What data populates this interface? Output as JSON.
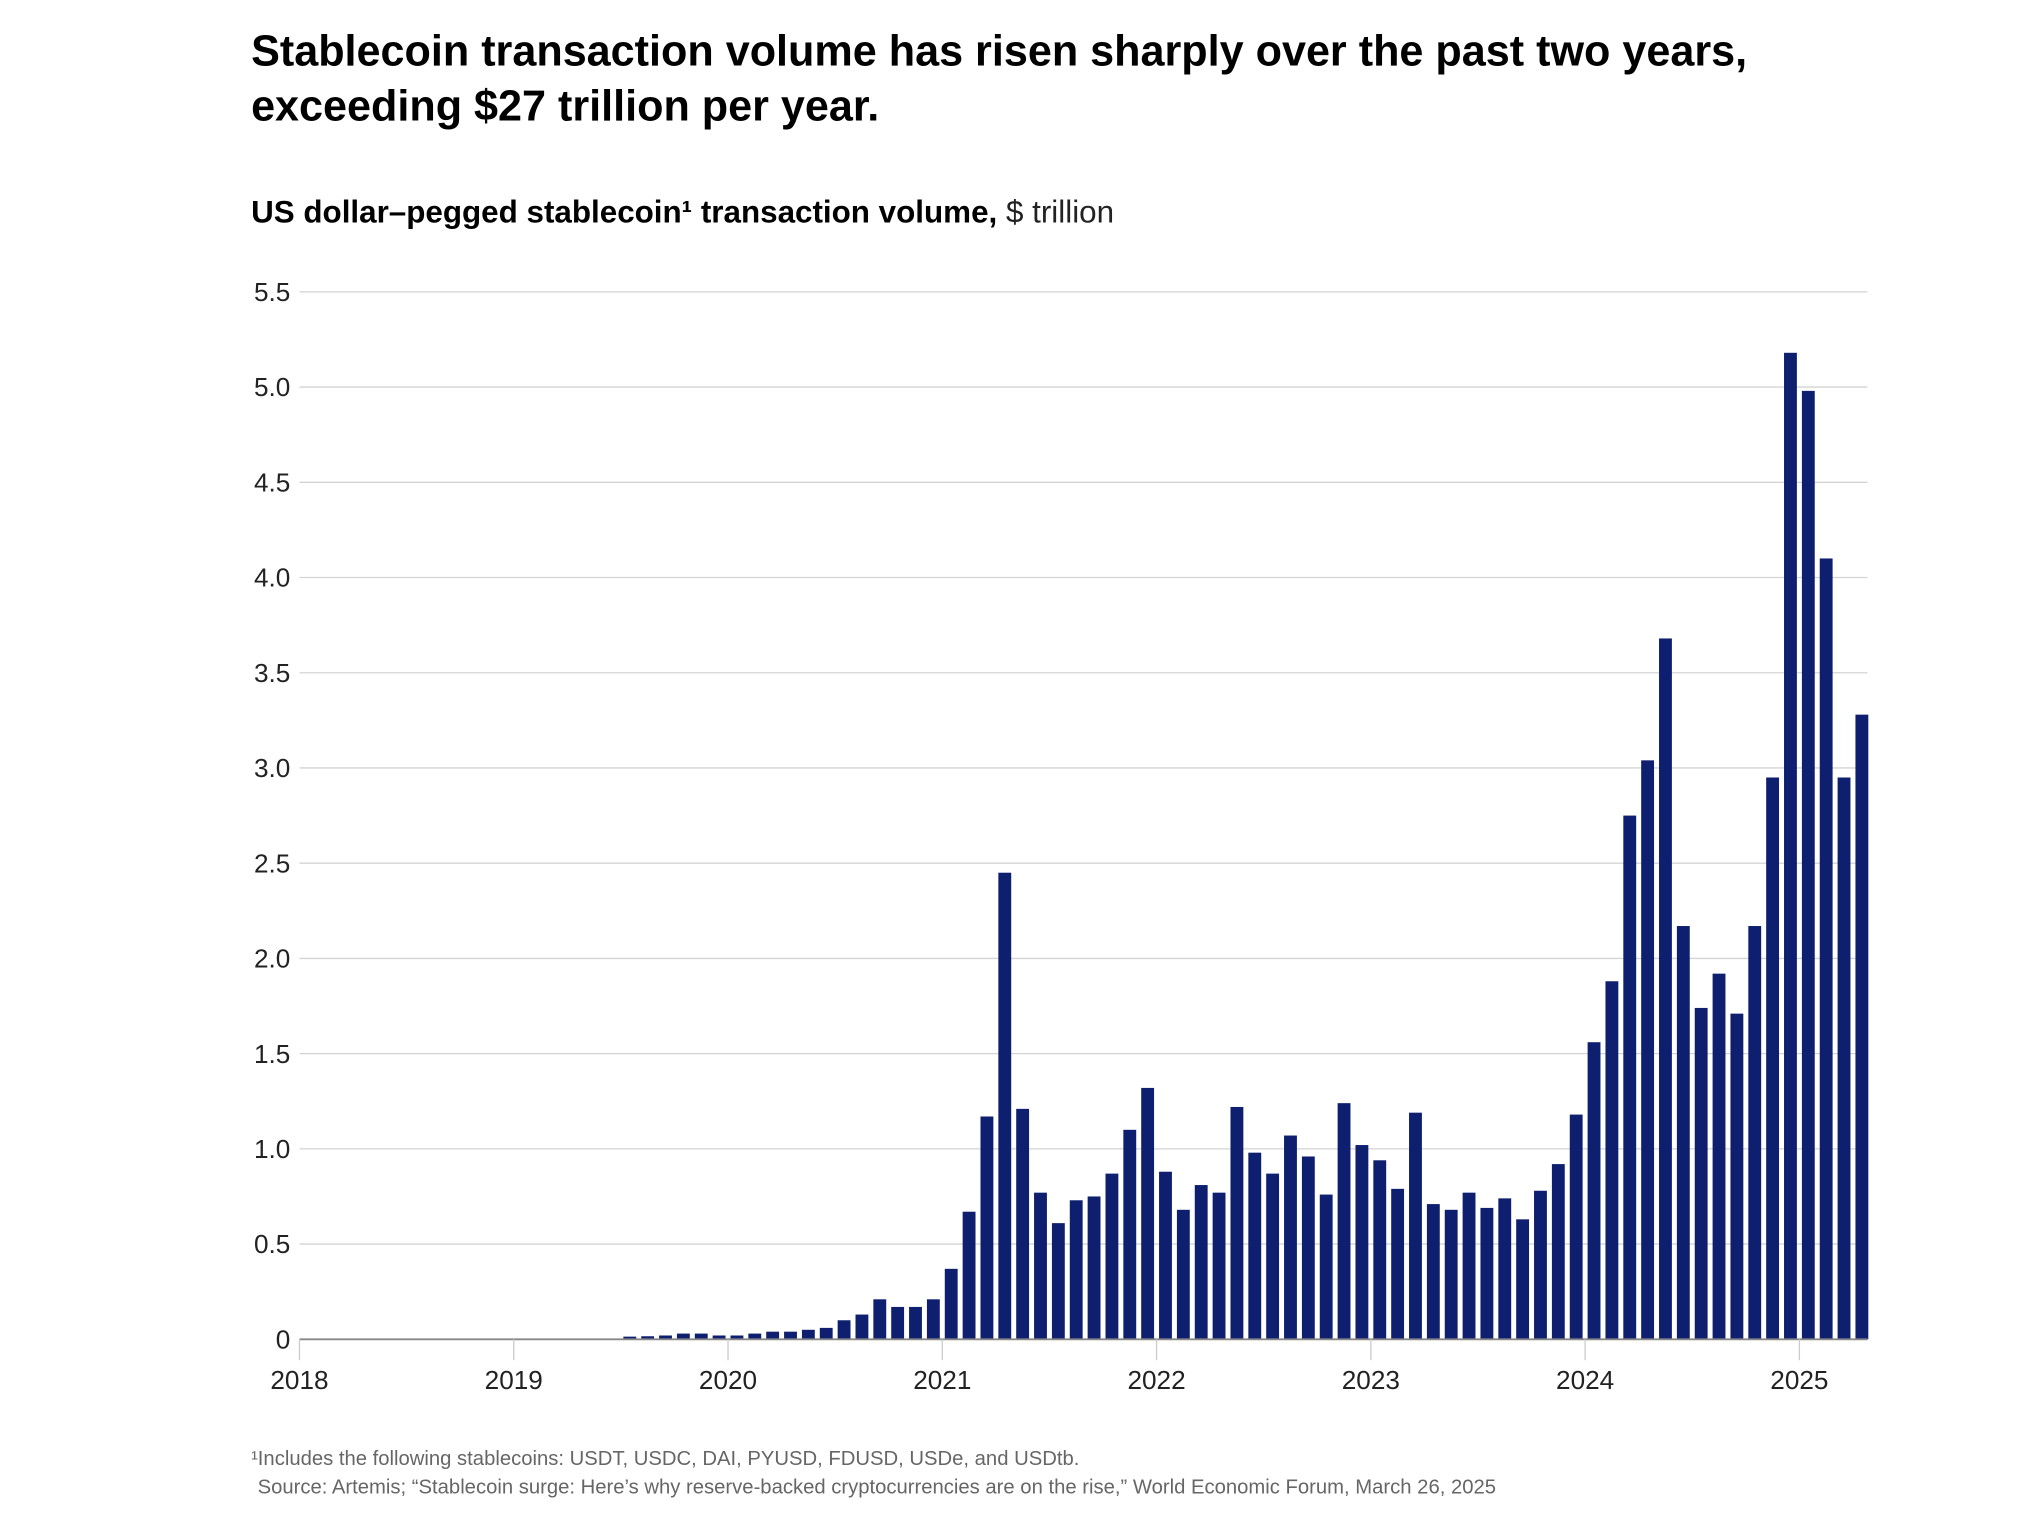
{
  "title_line1": "Stablecoin transaction volume has risen sharply over the past two years,",
  "title_line2": "exceeding $27 trillion per year.",
  "subtitle_bold": "US dollar–pegged stablecoin¹ transaction volume,",
  "subtitle_unit": " $ trillion",
  "footnote": "¹Includes the following stablecoins: USDT, USDC, DAI, PYUSD, FDUSD, USDe, and USDtb.",
  "source": "Source: Artemis; “Stablecoin surge: Here’s why reserve-backed cryptocurrencies are on the rise,” World Economic Forum, March 26, 2025",
  "chart_data": {
    "type": "bar",
    "title": "US dollar–pegged stablecoin¹ transaction volume, $ trillion",
    "xlabel": "",
    "ylabel": "$ trillion",
    "ylim": [
      0,
      5.5
    ],
    "yticks": [
      "0",
      "0.5",
      "1.0",
      "1.5",
      "2.0",
      "2.5",
      "3.0",
      "3.5",
      "4.0",
      "4.5",
      "5.0",
      "5.5"
    ],
    "xticks": [
      "2018",
      "2019",
      "2020",
      "2021",
      "2022",
      "2023",
      "2024",
      "2025"
    ],
    "grid": true,
    "bar_color": "#0d1f6e",
    "start_month": "2018-01",
    "categories": [
      "2018-01",
      "2018-02",
      "2018-03",
      "2018-04",
      "2018-05",
      "2018-06",
      "2018-07",
      "2018-08",
      "2018-09",
      "2018-10",
      "2018-11",
      "2018-12",
      "2019-01",
      "2019-02",
      "2019-03",
      "2019-04",
      "2019-05",
      "2019-06",
      "2019-07",
      "2019-08",
      "2019-09",
      "2019-10",
      "2019-11",
      "2019-12",
      "2020-01",
      "2020-02",
      "2020-03",
      "2020-04",
      "2020-05",
      "2020-06",
      "2020-07",
      "2020-08",
      "2020-09",
      "2020-10",
      "2020-11",
      "2020-12",
      "2021-01",
      "2021-02",
      "2021-03",
      "2021-04",
      "2021-05",
      "2021-06",
      "2021-07",
      "2021-08",
      "2021-09",
      "2021-10",
      "2021-11",
      "2021-12",
      "2022-01",
      "2022-02",
      "2022-03",
      "2022-04",
      "2022-05",
      "2022-06",
      "2022-07",
      "2022-08",
      "2022-09",
      "2022-10",
      "2022-11",
      "2022-12",
      "2023-01",
      "2023-02",
      "2023-03",
      "2023-04",
      "2023-05",
      "2023-06",
      "2023-07",
      "2023-08",
      "2023-09",
      "2023-10",
      "2023-11",
      "2023-12",
      "2024-01",
      "2024-02",
      "2024-03",
      "2024-04",
      "2024-05",
      "2024-06",
      "2024-07",
      "2024-08",
      "2024-09",
      "2024-10",
      "2024-11",
      "2024-12",
      "2025-01",
      "2025-02",
      "2025-03",
      "2025-04"
    ],
    "values": [
      0,
      0,
      0,
      0,
      0,
      0,
      0,
      0,
      0,
      0,
      0,
      0,
      0,
      0,
      0.001,
      0.002,
      0.003,
      0.004,
      0.014,
      0.016,
      0.02,
      0.03,
      0.03,
      0.02,
      0.02,
      0.03,
      0.04,
      0.04,
      0.05,
      0.06,
      0.1,
      0.13,
      0.21,
      0.17,
      0.17,
      0.21,
      0.37,
      0.67,
      1.17,
      2.45,
      1.21,
      0.77,
      0.61,
      0.73,
      0.75,
      0.87,
      1.1,
      1.32,
      0.88,
      0.68,
      0.81,
      0.77,
      1.22,
      0.98,
      0.87,
      1.07,
      0.96,
      0.76,
      1.24,
      1.02,
      0.94,
      0.79,
      1.19,
      0.71,
      0.68,
      0.77,
      0.69,
      0.74,
      0.63,
      0.78,
      0.92,
      1.18,
      1.56,
      1.88,
      2.75,
      3.04,
      3.68,
      2.17,
      1.74,
      1.92,
      1.71,
      2.17,
      2.95,
      5.18,
      4.98,
      4.1,
      2.95,
      3.28
    ]
  }
}
